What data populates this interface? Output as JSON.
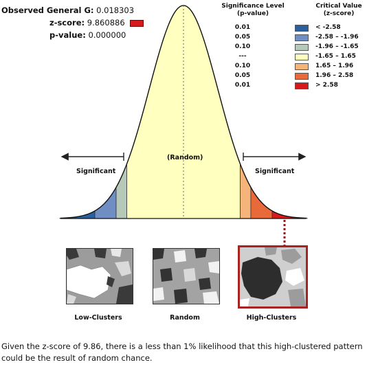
{
  "stats": {
    "observed_label": "Observed General G:",
    "observed_value": "0.018303",
    "zscore_label": "z-score:",
    "zscore_value": "9.860886",
    "pvalue_label": "p-value:",
    "pvalue_value": "0.000000",
    "zscore_swatch_color": "#d7191c"
  },
  "legend": {
    "sig_header_line1": "Significance Level",
    "sig_header_line2": "(p-value)",
    "crit_header_line1": "Critical Value",
    "crit_header_line2": "(z-score)",
    "rows": [
      {
        "sig": "0.01",
        "color": "#2c5f9e",
        "crit": "< -2.58"
      },
      {
        "sig": "0.05",
        "color": "#6f8fc4",
        "crit": "-2.58 – -1.96"
      },
      {
        "sig": "0.10",
        "color": "#b6c8b7",
        "crit": "-1.96 – -1.65"
      },
      {
        "sig": "---",
        "color": "#ffffc0",
        "crit": "-1.65 – 1.65"
      },
      {
        "sig": "0.10",
        "color": "#f5b47a",
        "crit": "1.65 – 1.96"
      },
      {
        "sig": "0.05",
        "color": "#e8693a",
        "crit": "1.96 – 2.58"
      },
      {
        "sig": "0.01",
        "color": "#d7191c",
        "crit": "> 2.58"
      }
    ]
  },
  "curve": {
    "random_label": "(Random)",
    "left_label": "Significant",
    "right_label": "Significant",
    "center_color": "#ffffc0"
  },
  "maps": {
    "low_label": "Low-Clusters",
    "random_label": "Random",
    "high_label": "High-Clusters",
    "highlight_color": "#a8231f"
  },
  "caption": "Given the z-score of 9.86, there is a less than 1% likelihood that this high-clustered pattern could be the result of random chance."
}
